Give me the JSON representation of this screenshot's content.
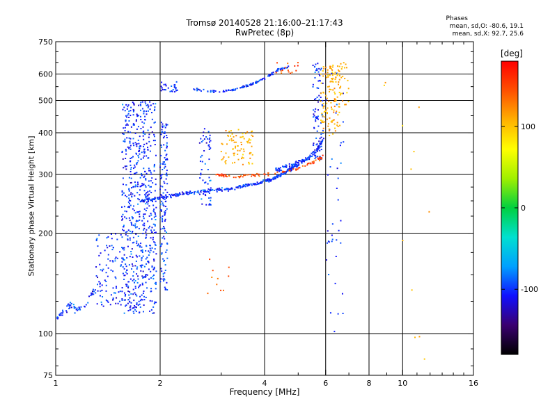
{
  "chart_data": {
    "type": "scatter",
    "title": "Tromsø 20140528 21:16:00–21:17:43",
    "subtitle": "RwPretec (8p)",
    "xlabel": "Frequency [MHz]",
    "ylabel": "Stationary phase Virtual Height [km]",
    "x_scale": "log",
    "y_scale": "log",
    "xlim": [
      1,
      16
    ],
    "ylim": [
      75,
      750
    ],
    "x_ticks": [
      1,
      2,
      4,
      6,
      8,
      10,
      16
    ],
    "y_ticks": [
      75,
      100,
      200,
      300,
      400,
      500,
      600,
      750
    ],
    "grid": true,
    "stats_title": "Phases",
    "stats": [
      "mean, sd,O: -80.6, 19.1",
      "mean, sd,X:  92.7, 25.6"
    ],
    "colorbar": {
      "label": "[deg]",
      "range": [
        -180,
        180
      ],
      "ticks": [
        100,
        0,
        -100
      ],
      "colors": [
        "#000000",
        "#3a0070",
        "#1010ff",
        "#00a0ff",
        "#00e0d0",
        "#00d040",
        "#a0f000",
        "#ffff00",
        "#ffb000",
        "#ff5000",
        "#ff0000"
      ]
    },
    "series": [
      {
        "phase_mean": -100,
        "traces": [
          {
            "shape": "curve",
            "x": [
              1.0,
              1.05,
              1.1,
              1.15,
              1.2,
              1.25,
              1.3
            ],
            "y": [
              110,
              116,
              122,
              118,
              120,
              128,
              135
            ],
            "width": 0.03,
            "count": 60
          },
          {
            "shape": "box",
            "x": [
              1.3,
              1.55
            ],
            "y": [
              120,
              200
            ],
            "count": 90
          },
          {
            "shape": "box",
            "x": [
              1.55,
              1.95
            ],
            "y": [
              115,
              500
            ],
            "count": 650
          },
          {
            "shape": "box",
            "x": [
              2.0,
              2.1
            ],
            "y": [
              135,
              430
            ],
            "count": 140
          },
          {
            "shape": "curve",
            "x": [
              1.75,
              2.0,
              2.3,
              2.7,
              3.2,
              3.7,
              4.2,
              4.6,
              5.0
            ],
            "y": [
              250,
              255,
              262,
              268,
              272,
              280,
              290,
              305,
              320
            ],
            "width": 0.018,
            "count": 320
          },
          {
            "shape": "curve",
            "x": [
              4.3,
              4.8,
              5.2,
              5.6,
              5.9
            ],
            "y": [
              310,
              320,
              330,
              350,
              380
            ],
            "width": 0.025,
            "count": 120
          },
          {
            "shape": "curve",
            "x": [
              2.5,
              2.9,
              3.3,
              3.7,
              4.1,
              4.4,
              4.7
            ],
            "y": [
              540,
              530,
              540,
              560,
              590,
              620,
              630
            ],
            "width": 0.012,
            "count": 120
          },
          {
            "shape": "box",
            "x": [
              2.0,
              2.25
            ],
            "y": [
              530,
              570
            ],
            "count": 30
          },
          {
            "shape": "box",
            "x": [
              2.6,
              2.8
            ],
            "y": [
              240,
              420
            ],
            "count": 60
          },
          {
            "shape": "box",
            "x": [
              5.5,
              5.9
            ],
            "y": [
              330,
              650
            ],
            "count": 90
          },
          {
            "shape": "box",
            "x": [
              6.0,
              6.8
            ],
            "y": [
              80,
              650
            ],
            "count": 40
          }
        ]
      },
      {
        "phase_mean": 110,
        "traces": [
          {
            "shape": "box",
            "x": [
              3.0,
              3.7
            ],
            "y": [
              320,
              410
            ],
            "count": 80
          },
          {
            "shape": "box",
            "x": [
              5.8,
              6.6
            ],
            "y": [
              390,
              640
            ],
            "count": 110
          },
          {
            "shape": "box",
            "x": [
              6.2,
              7.0
            ],
            "y": [
              480,
              650
            ],
            "count": 40
          },
          {
            "shape": "box",
            "x": [
              8.5,
              12.0
            ],
            "y": [
              80,
              600
            ],
            "count": 12
          }
        ]
      },
      {
        "phase_mean": 150,
        "traces": [
          {
            "shape": "curve",
            "x": [
              2.9,
              3.2,
              3.6,
              4.0,
              4.5,
              5.0,
              5.5,
              5.9
            ],
            "y": [
              300,
              295,
              298,
              300,
              305,
              312,
              325,
              340
            ],
            "width": 0.015,
            "count": 90
          },
          {
            "shape": "box",
            "x": [
              4.3,
              5.0
            ],
            "y": [
              600,
              650
            ],
            "count": 15
          },
          {
            "shape": "box",
            "x": [
              2.7,
              3.2
            ],
            "y": [
              130,
              175
            ],
            "count": 10
          }
        ]
      }
    ]
  }
}
